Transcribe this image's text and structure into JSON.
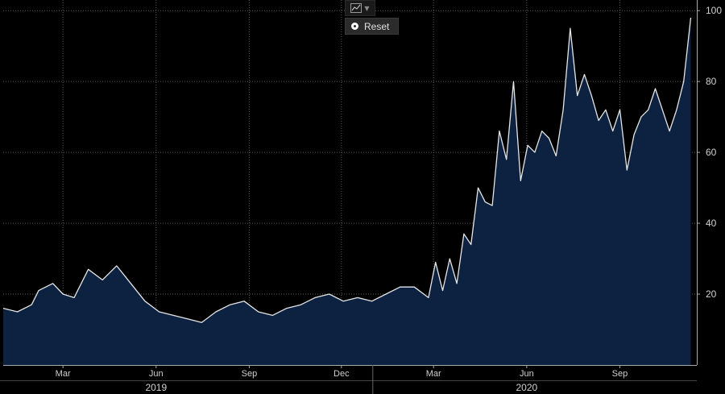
{
  "toolbar": {
    "chart_type_icon": "line-chart-icon",
    "dropdown_icon": "chevron-down-icon"
  },
  "reset": {
    "label": "Reset",
    "icon": "radio-dot-icon"
  },
  "colors": {
    "background": "#000000",
    "area_fill": "#0d2240",
    "line": "#e6e6e6",
    "grid": "#5a5a5a",
    "text": "#d0d0d0"
  },
  "chart_data": {
    "type": "area",
    "title": "",
    "xlabel": "",
    "ylabel": "",
    "ylim": [
      0,
      103
    ],
    "yticks": [
      20,
      40,
      60,
      80,
      100
    ],
    "xlim": [
      "2019-01-01",
      "2020-11-16"
    ],
    "xticks": [
      {
        "date": "2019-03-01",
        "label": "Mar"
      },
      {
        "date": "2019-06-01",
        "label": "Jun"
      },
      {
        "date": "2019-09-01",
        "label": "Sep"
      },
      {
        "date": "2019-12-01",
        "label": "Dec"
      },
      {
        "date": "2020-03-01",
        "label": "Mar"
      },
      {
        "date": "2020-06-01",
        "label": "Jun"
      },
      {
        "date": "2020-09-01",
        "label": "Sep"
      }
    ],
    "year_labels": [
      {
        "date": "2019-06-01",
        "label": "2019"
      },
      {
        "date": "2020-06-01",
        "label": "2020"
      }
    ],
    "year_divider": "2020-01-01",
    "grid": true,
    "series": [
      {
        "x": [
          "2019-01-01",
          "2019-01-15",
          "2019-01-29",
          "2019-02-05",
          "2019-02-19",
          "2019-03-01",
          "2019-03-12",
          "2019-03-26",
          "2019-04-09",
          "2019-04-16",
          "2019-04-23",
          "2019-05-07",
          "2019-05-21",
          "2019-06-04",
          "2019-06-18",
          "2019-07-02",
          "2019-07-16",
          "2019-07-30",
          "2019-08-13",
          "2019-08-27",
          "2019-09-10",
          "2019-09-24",
          "2019-10-08",
          "2019-10-22",
          "2019-11-05",
          "2019-11-19",
          "2019-12-03",
          "2019-12-17",
          "2019-12-31",
          "2020-01-14",
          "2020-01-28",
          "2020-02-11",
          "2020-02-25",
          "2020-03-03",
          "2020-03-10",
          "2020-03-17",
          "2020-03-24",
          "2020-03-31",
          "2020-04-07",
          "2020-04-14",
          "2020-04-21",
          "2020-04-28",
          "2020-05-05",
          "2020-05-12",
          "2020-05-19",
          "2020-05-26",
          "2020-06-02",
          "2020-06-09",
          "2020-06-16",
          "2020-06-23",
          "2020-06-30",
          "2020-07-07",
          "2020-07-14",
          "2020-07-21",
          "2020-07-28",
          "2020-08-04",
          "2020-08-11",
          "2020-08-18",
          "2020-08-25",
          "2020-09-01",
          "2020-09-08",
          "2020-09-15",
          "2020-09-22",
          "2020-09-29",
          "2020-10-06",
          "2020-10-13",
          "2020-10-20",
          "2020-10-27",
          "2020-11-03",
          "2020-11-10"
        ],
        "values": [
          16,
          15,
          17,
          21,
          23,
          20,
          19,
          27,
          24,
          26,
          28,
          23,
          18,
          15,
          14,
          13,
          12,
          15,
          17,
          18,
          15,
          14,
          16,
          17,
          19,
          20,
          18,
          19,
          18,
          20,
          22,
          22,
          19,
          29,
          21,
          30,
          23,
          37,
          34,
          50,
          46,
          45,
          66,
          58,
          80,
          52,
          62,
          60,
          66,
          64,
          59,
          72,
          95,
          76,
          82,
          76,
          69,
          72,
          66,
          72,
          55,
          65,
          70,
          72,
          78,
          72,
          66,
          72,
          80,
          98
        ]
      }
    ]
  }
}
